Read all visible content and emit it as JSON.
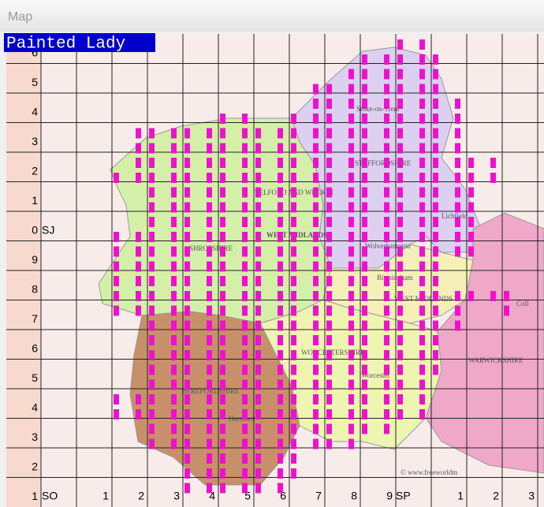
{
  "window": {
    "title": "Map"
  },
  "species": "Painted Lady",
  "grid": {
    "row_labels": [
      "6",
      "5",
      "4",
      "3",
      "2",
      "1",
      "0",
      "9",
      "8",
      "7",
      "6",
      "5",
      "4",
      "3",
      "2",
      "1"
    ],
    "column_labels": [
      "1",
      "2",
      "3",
      "4",
      "5",
      "6",
      "7",
      "8",
      "9",
      "1",
      "2",
      "3"
    ],
    "zones": [
      "SJ",
      "SO",
      "SP"
    ]
  },
  "map_labels": [
    "Stoke-on-Trent",
    "STAFFORDSHIRE",
    "TELFORD AND WREKIN",
    "WEST MIDLANDS",
    "SHROPSHIRE",
    "Wolverhampton",
    "Birmingham",
    "WEST MIDLANDS",
    "Lichfield",
    "WORCESTERSHIRE",
    "Worcester",
    "HEREFORDSHIRE",
    "Hereford",
    "WARWICKSHIRE",
    "Coll",
    "© www.freeworldm"
  ]
}
